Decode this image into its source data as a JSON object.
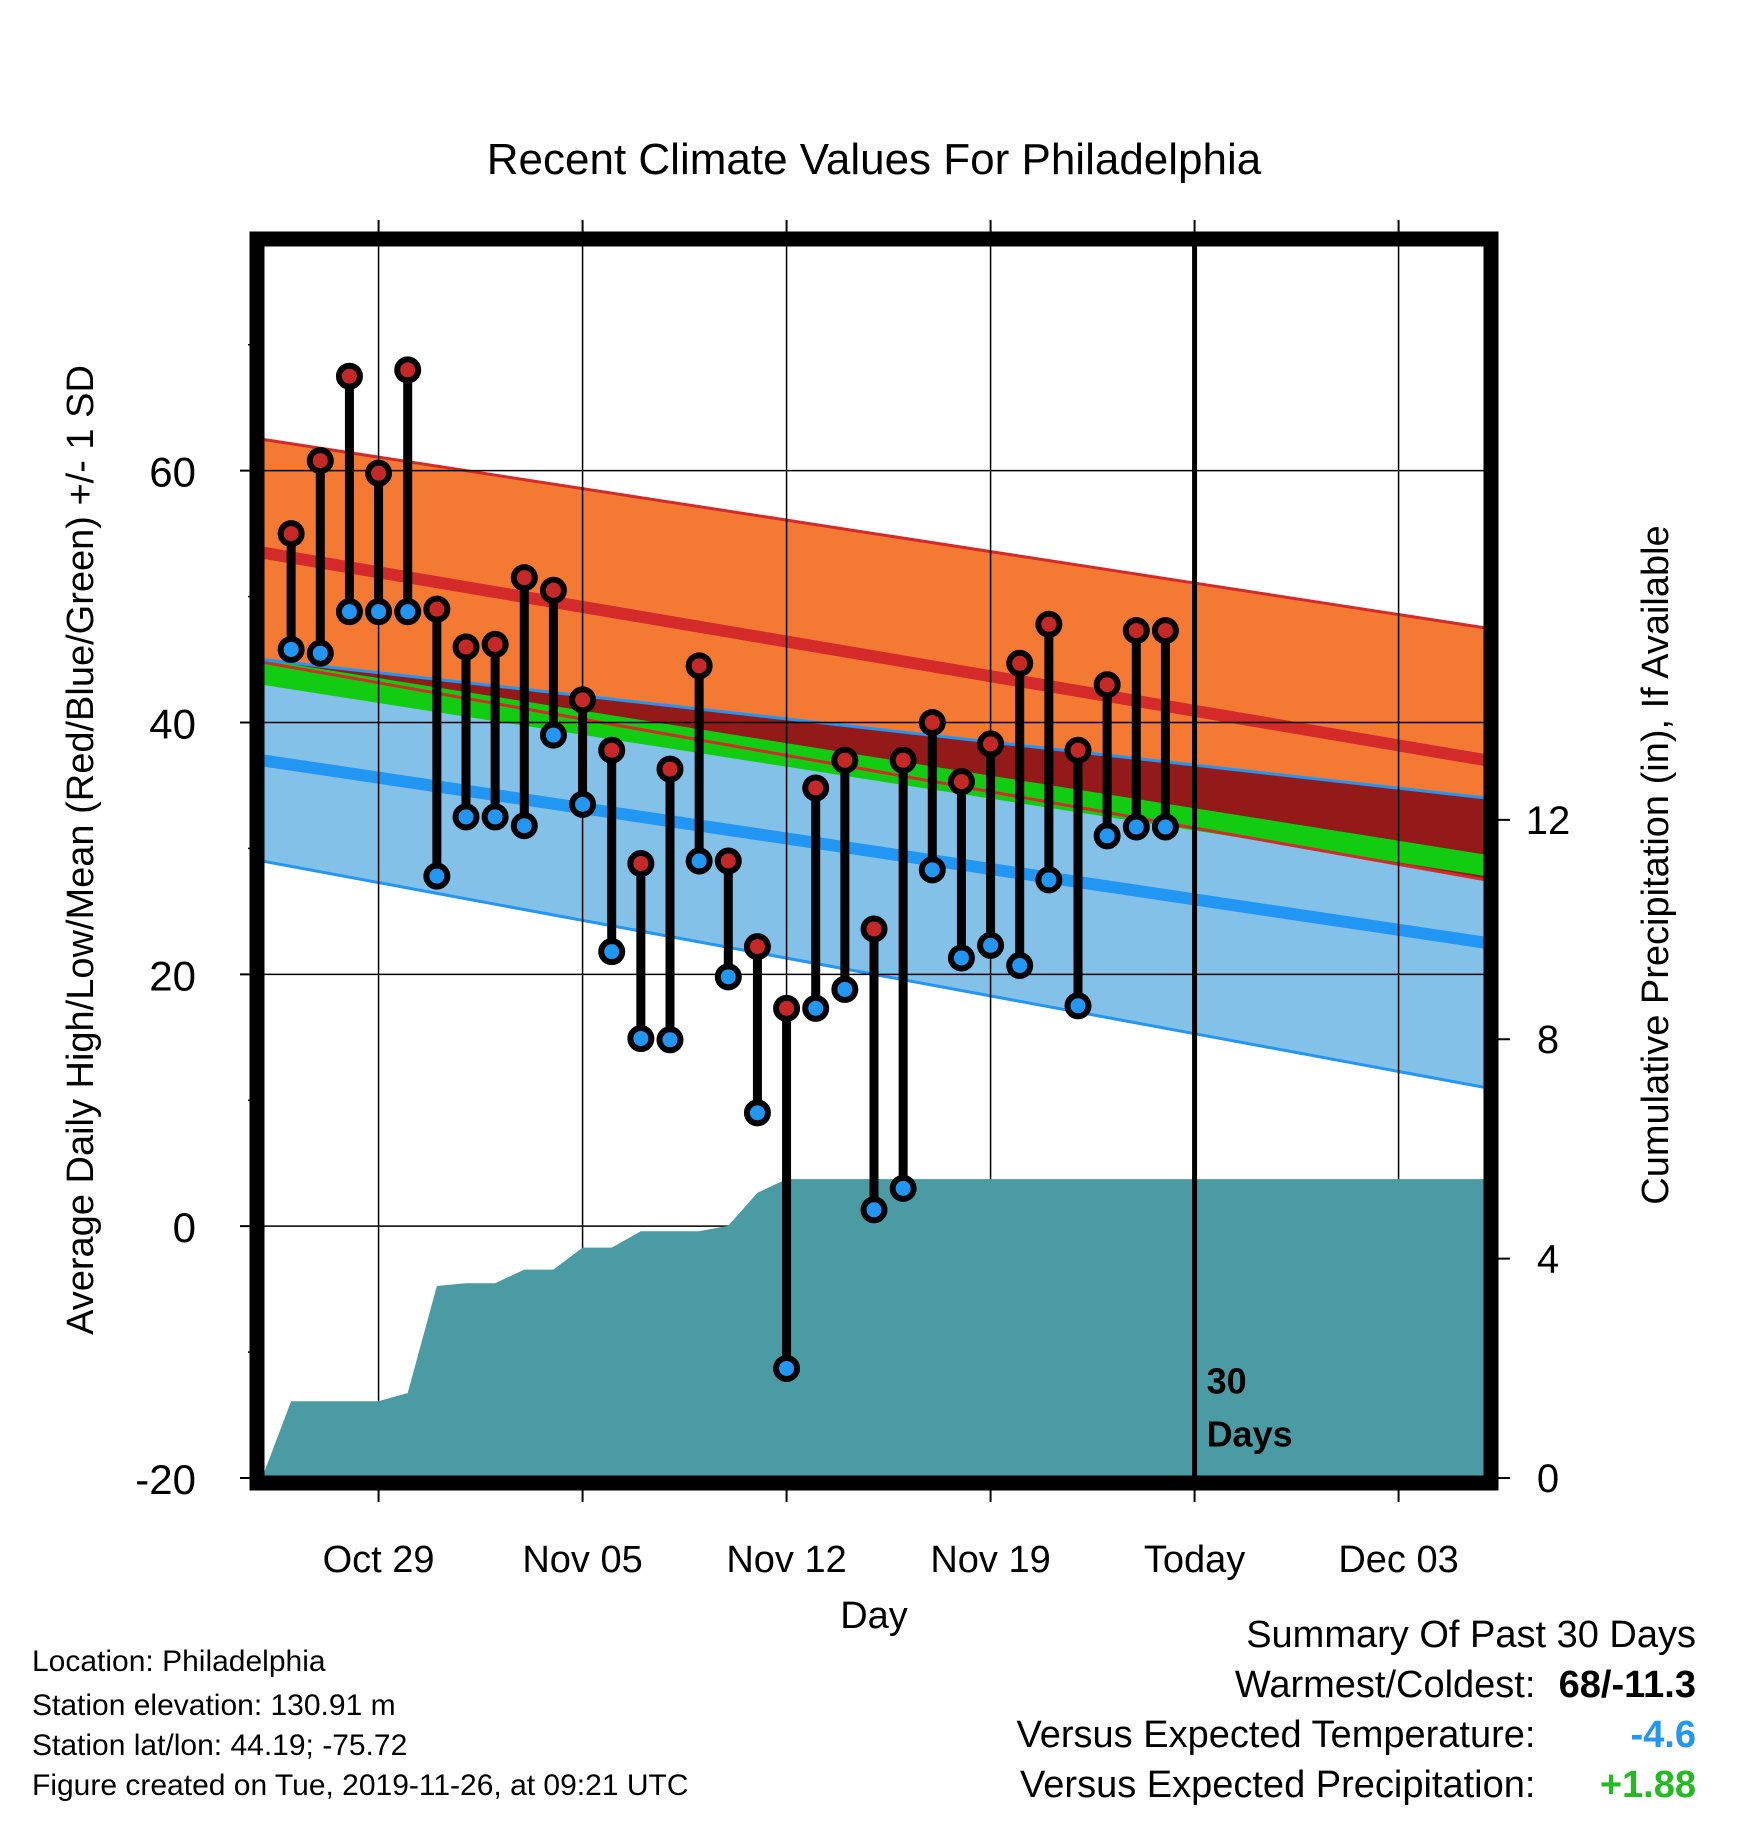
{
  "chart_data": {
    "type": "temperature-range",
    "title": "Recent Climate Values For Philadelphia",
    "xlabel": "Day",
    "ylabel": "Average Daily High/Low/Mean (Red/Blue/Green) +/- 1 SD",
    "y2label": "Cumulative Precipitation (in), If Available",
    "ylim": [
      -20,
      78
    ],
    "y2lim": [
      0,
      22.5
    ],
    "xlim": [
      "2019-10-25",
      "2019-12-06"
    ],
    "yticks": [
      -20,
      0,
      20,
      40,
      60
    ],
    "y2ticks": [
      0,
      4,
      8,
      12
    ],
    "xticks": [
      {
        "date": "2019-10-29",
        "label": "Oct 29"
      },
      {
        "date": "2019-11-05",
        "label": "Nov 05"
      },
      {
        "date": "2019-11-12",
        "label": "Nov 12"
      },
      {
        "date": "2019-11-19",
        "label": "Nov 19"
      },
      {
        "date": "2019-11-26",
        "label": "Today"
      },
      {
        "date": "2019-12-03",
        "label": "Dec 03"
      }
    ],
    "today": "2019-11-26",
    "today_note": [
      "30",
      "Days"
    ],
    "normals": {
      "dates": [
        "2019-10-25",
        "2019-12-06"
      ],
      "high_upper": [
        62.5,
        47.5
      ],
      "high_mean": [
        53.5,
        37.0
      ],
      "high_lower": [
        44.8,
        27.5
      ],
      "mean_upper": [
        45.0,
        29.5
      ],
      "mean_lower": [
        43.0,
        27.8
      ],
      "low_upper": [
        45.0,
        34.0
      ],
      "low_mean": [
        37.0,
        22.5
      ],
      "low_lower": [
        29.0,
        11.0
      ]
    },
    "dates": [
      "2019-10-26",
      "2019-10-27",
      "2019-10-28",
      "2019-10-29",
      "2019-10-30",
      "2019-10-31",
      "2019-11-01",
      "2019-11-02",
      "2019-11-03",
      "2019-11-04",
      "2019-11-05",
      "2019-11-06",
      "2019-11-07",
      "2019-11-08",
      "2019-11-09",
      "2019-11-10",
      "2019-11-11",
      "2019-11-12",
      "2019-11-13",
      "2019-11-14",
      "2019-11-15",
      "2019-11-16",
      "2019-11-17",
      "2019-11-18",
      "2019-11-19",
      "2019-11-20",
      "2019-11-21",
      "2019-11-22",
      "2019-11-23",
      "2019-11-24",
      "2019-11-25"
    ],
    "series": [
      {
        "name": "High",
        "color": "#c62828",
        "values": [
          55.0,
          60.8,
          67.5,
          59.8,
          68.0,
          49.0,
          46.0,
          46.2,
          51.5,
          50.5,
          41.8,
          37.8,
          28.8,
          36.3,
          44.5,
          29.0,
          22.2,
          17.3,
          34.8,
          37.0,
          23.6,
          37.0,
          40.0,
          35.3,
          38.3,
          44.7,
          47.8,
          37.8,
          43.0,
          47.3,
          47.3
        ]
      },
      {
        "name": "Low",
        "color": "#2196f3",
        "values": [
          45.8,
          45.5,
          48.8,
          48.8,
          48.8,
          27.8,
          32.5,
          32.5,
          31.8,
          39.0,
          33.5,
          21.8,
          14.9,
          14.8,
          29.0,
          19.8,
          9.0,
          -11.3,
          17.3,
          18.8,
          1.3,
          3.0,
          28.3,
          21.3,
          22.3,
          20.7,
          27.5,
          17.5,
          31.0,
          31.7,
          31.7
        ]
      },
      {
        "name": "Cumulative Precipitation",
        "color": "#4a9ba3",
        "values": [
          1.4,
          1.4,
          1.4,
          1.4,
          1.55,
          3.5,
          3.55,
          3.55,
          3.8,
          3.8,
          4.2,
          4.2,
          4.5,
          4.5,
          4.5,
          4.6,
          5.2,
          5.45,
          5.45,
          5.45,
          5.45,
          5.45,
          5.45,
          5.45,
          5.45,
          5.45,
          5.45,
          5.45,
          5.45,
          5.45,
          5.45
        ]
      }
    ],
    "grid": true,
    "legend": "none"
  },
  "footer": {
    "location": "Location: Philadelphia",
    "elevation": "Station elevation: 130.91 m",
    "latlon": "Station lat/lon: 44.19; -75.72",
    "created": "Figure created on Tue, 2019-11-26, at 09:21 UTC"
  },
  "summary": {
    "title": "Summary Of Past 30 Days",
    "warmest_label": "Warmest/Coldest:",
    "warmest_value": "68/-11.3",
    "temp_label": "Versus Expected Temperature:",
    "temp_value": "-4.6",
    "precip_label": "Versus Expected Precipitation:",
    "precip_value": "+1.88",
    "colors": {
      "temp": "#2196f3",
      "precip": "#22bb22",
      "default": "#000000"
    }
  }
}
